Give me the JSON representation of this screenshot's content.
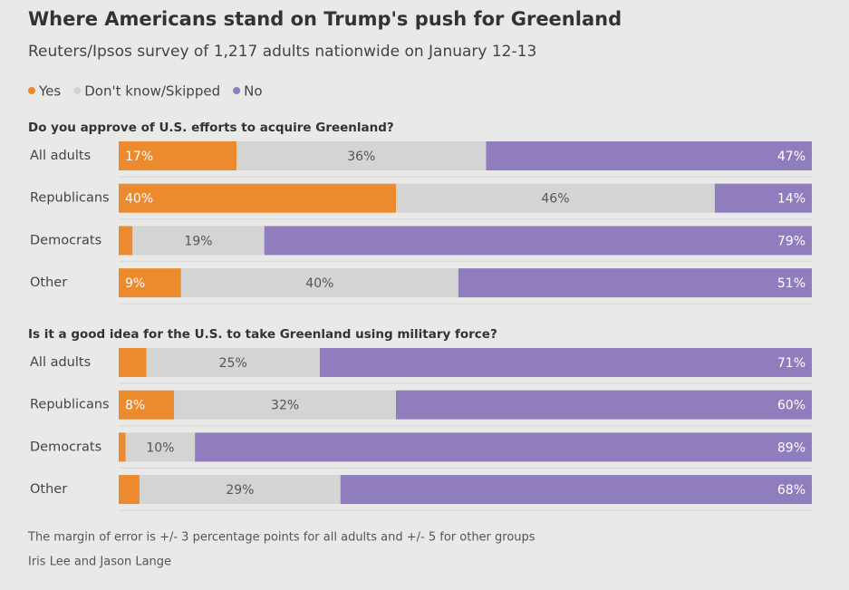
{
  "title": "Where Americans stand on Trump's push for Greenland",
  "subtitle": "Reuters/Ipsos survey of 1,217 adults nationwide on January 12-13",
  "note": "The margin of error is +/- 3 percentage points for all adults and +/- 5 for other groups",
  "credit": "Iris Lee and Jason Lange",
  "chart_data": [
    {
      "type": "bar",
      "orientation": "horizontal",
      "stacked": true,
      "title": "Do you approve of U.S. efforts to acquire Greenland?",
      "categories": [
        "All adults",
        "Republicans",
        "Democrats",
        "Other"
      ],
      "series": [
        {
          "name": "Yes",
          "color": "#ec8a2e",
          "values": [
            17,
            40,
            2,
            9
          ],
          "value_labels": [
            "17%",
            "40%",
            null,
            "9%"
          ]
        },
        {
          "name": "Don't know/Skipped",
          "color": "#d4d4d4",
          "values": [
            36,
            46,
            19,
            40
          ],
          "value_labels": [
            "36%",
            "46%",
            "19%",
            "40%"
          ]
        },
        {
          "name": "No",
          "color": "#8f7dbe",
          "values": [
            47,
            14,
            79,
            51
          ],
          "value_labels": [
            "47%",
            "14%",
            "79%",
            "51%"
          ]
        }
      ]
    },
    {
      "type": "bar",
      "orientation": "horizontal",
      "stacked": true,
      "title": "Is it a good idea for the U.S. to take Greenland using military force?",
      "categories": [
        "All adults",
        "Republicans",
        "Democrats",
        "Other"
      ],
      "series": [
        {
          "name": "Yes",
          "color": "#ec8a2e",
          "values": [
            4,
            8,
            1,
            3
          ],
          "value_labels": [
            null,
            "8%",
            null,
            null
          ]
        },
        {
          "name": "Don't know/Skipped",
          "color": "#d4d4d4",
          "values": [
            25,
            32,
            10,
            29
          ],
          "value_labels": [
            "25%",
            "32%",
            "10%",
            "29%"
          ]
        },
        {
          "name": "No",
          "color": "#8f7dbe",
          "values": [
            71,
            60,
            89,
            68
          ],
          "value_labels": [
            "71%",
            "60%",
            "89%",
            "68%"
          ]
        }
      ]
    }
  ]
}
